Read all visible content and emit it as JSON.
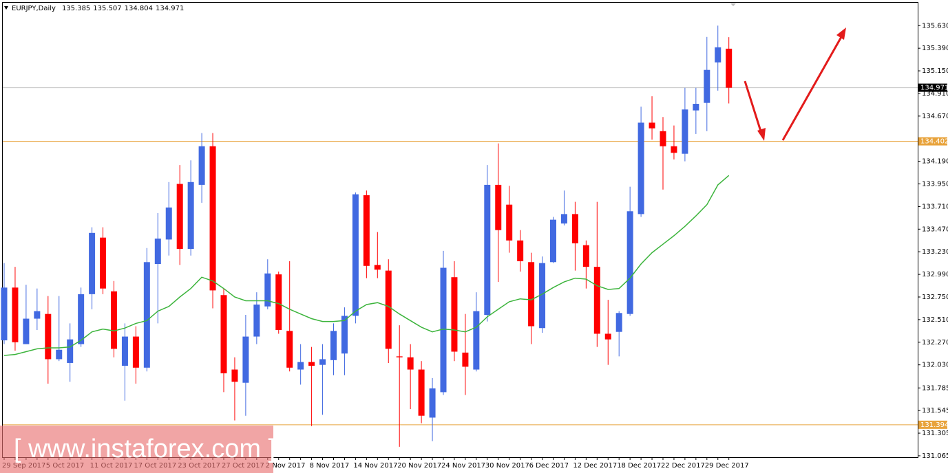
{
  "chart_data": {
    "type": "candlestick",
    "title": "EURJPY,Daily",
    "categories": [
      "29 Sep 2017",
      null,
      null,
      null,
      "5 Oct 2017",
      null,
      null,
      null,
      "11 Oct 2017",
      null,
      null,
      null,
      "17 Oct 2017",
      null,
      null,
      null,
      "23 Oct 2017",
      null,
      null,
      null,
      "27 Oct 2017",
      null,
      null,
      null,
      "2 Nov 2017",
      null,
      null,
      null,
      "8 Nov 2017",
      null,
      null,
      null,
      "14 Nov 2017",
      null,
      null,
      null,
      "20 Nov 2017",
      null,
      null,
      null,
      "24 Nov 2017",
      null,
      null,
      null,
      "30 Nov 2017",
      null,
      null,
      null,
      "6 Dec 2017",
      null,
      null,
      null,
      "12 Dec 2017",
      null,
      null,
      null,
      "18 Dec 2017",
      null,
      null,
      null,
      "22 Dec 2017",
      null,
      null,
      null,
      "29 Dec 2017",
      null,
      null
    ],
    "open": [
      132.29,
      132.85,
      132.25,
      132.52,
      132.57,
      132.09,
      132.05,
      132.25,
      132.78,
      133.38,
      132.81,
      132.02,
      132.33,
      132.0,
      133.1,
      133.36,
      133.95,
      133.26,
      133.94,
      134.35,
      132.77,
      131.98,
      131.84,
      132.33,
      132.65,
      132.99,
      132.39,
      131.98,
      132.06,
      132.03,
      132.08,
      132.15,
      132.55,
      133.83,
      133.09,
      133.03,
      132.12,
      132.11,
      131.98,
      131.47,
      131.74,
      132.96,
      132.16,
      131.98,
      132.56,
      133.94,
      133.73,
      133.35,
      133.12,
      132.42,
      133.12,
      133.53,
      133.63,
      133.3,
      133.07,
      132.36,
      132.38,
      132.57,
      133.63,
      134.6,
      134.51,
      134.35,
      134.27,
      134.73,
      134.81,
      135.24,
      135.385
    ],
    "high": [
      133.11,
      133.07,
      132.88,
      132.84,
      132.76,
      132.76,
      132.47,
      132.85,
      133.49,
      133.49,
      132.92,
      132.47,
      132.44,
      133.27,
      133.64,
      133.97,
      134.15,
      134.2,
      134.49,
      134.49,
      132.84,
      132.11,
      132.56,
      132.8,
      133.15,
      133.02,
      133.13,
      132.25,
      132.22,
      132.25,
      132.47,
      132.64,
      133.86,
      133.88,
      133.44,
      133.15,
      132.45,
      132.25,
      132.07,
      131.89,
      133.24,
      133.13,
      132.57,
      132.8,
      134.15,
      134.38,
      133.93,
      133.46,
      133.22,
      133.18,
      133.6,
      133.88,
      133.76,
      133.35,
      133.76,
      132.72,
      132.6,
      133.92,
      134.77,
      134.88,
      134.66,
      134.57,
      134.97,
      134.97,
      135.51,
      135.63,
      135.507
    ],
    "low": [
      132.25,
      132.18,
      132.25,
      132.4,
      131.83,
      132.07,
      131.85,
      132.22,
      132.62,
      132.78,
      132.11,
      131.65,
      131.83,
      131.96,
      132.47,
      133.19,
      133.09,
      133.19,
      133.75,
      132.63,
      131.74,
      131.44,
      131.49,
      132.25,
      132.62,
      132.36,
      131.96,
      131.82,
      131.38,
      131.5,
      131.92,
      131.92,
      132.47,
      132.95,
      132.95,
      132.05,
      131.16,
      131.56,
      131.41,
      131.22,
      131.71,
      132.07,
      131.71,
      131.96,
      132.49,
      132.91,
      133.22,
      133.02,
      132.25,
      132.37,
      133.11,
      133.51,
      133.03,
      132.84,
      132.22,
      132.03,
      132.12,
      132.55,
      133.6,
      134.42,
      133.89,
      134.21,
      134.19,
      134.48,
      134.51,
      134.94,
      134.804
    ],
    "close": [
      132.85,
      132.27,
      132.52,
      132.6,
      132.09,
      132.19,
      132.3,
      132.78,
      133.43,
      132.84,
      132.2,
      132.33,
      132.0,
      133.12,
      133.37,
      133.7,
      133.26,
      133.97,
      134.35,
      132.82,
      131.94,
      131.85,
      132.33,
      132.67,
      133.0,
      132.4,
      132.0,
      132.06,
      132.02,
      132.09,
      132.39,
      132.55,
      133.84,
      133.08,
      133.04,
      132.2,
      132.11,
      131.98,
      131.49,
      131.78,
      133.06,
      132.17,
      132.01,
      132.6,
      133.94,
      133.46,
      133.35,
      133.13,
      132.44,
      133.11,
      133.57,
      133.63,
      133.32,
      133.07,
      132.36,
      132.3,
      132.58,
      133.66,
      134.6,
      134.54,
      134.35,
      134.28,
      134.74,
      134.8,
      135.16,
      135.4,
      134.971
    ],
    "up_color": "#4169e1",
    "down_color": "#ff0000",
    "ma": {
      "color": "#3cb43c",
      "values": [
        132.13,
        132.14,
        132.17,
        132.2,
        132.21,
        132.21,
        132.22,
        132.29,
        132.38,
        132.41,
        132.39,
        132.42,
        132.47,
        132.5,
        132.6,
        132.65,
        132.75,
        132.84,
        132.96,
        132.92,
        132.84,
        132.75,
        132.71,
        132.71,
        132.71,
        132.68,
        132.62,
        132.57,
        132.52,
        132.49,
        132.49,
        132.5,
        132.6,
        132.67,
        132.69,
        132.65,
        132.57,
        132.5,
        132.43,
        132.38,
        132.41,
        132.4,
        132.38,
        132.43,
        132.54,
        132.62,
        132.7,
        132.73,
        132.72,
        132.78,
        132.85,
        132.91,
        132.95,
        132.94,
        132.87,
        132.83,
        132.84,
        132.95,
        133.1,
        133.22,
        133.31,
        133.4,
        133.5,
        133.61,
        133.73,
        133.94,
        134.04
      ]
    },
    "ylim": [
      131.05,
      135.88
    ],
    "yticks": [
      {
        "value": 135.63,
        "label": "135.630"
      },
      {
        "value": 135.39,
        "label": "135.390"
      },
      {
        "value": 135.15,
        "label": "135.150"
      },
      {
        "value": 134.91,
        "label": "134.910"
      },
      {
        "value": 134.67,
        "label": "134.670"
      },
      {
        "value": 134.19,
        "label": "134.190"
      },
      {
        "value": 133.95,
        "label": "133.950"
      },
      {
        "value": 133.71,
        "label": "133.710"
      },
      {
        "value": 133.47,
        "label": "133.470"
      },
      {
        "value": 133.23,
        "label": "133.230"
      },
      {
        "value": 132.99,
        "label": "132.990"
      },
      {
        "value": 132.75,
        "label": "132.750"
      },
      {
        "value": 132.51,
        "label": "132.510"
      },
      {
        "value": 132.27,
        "label": "132.270"
      },
      {
        "value": 132.03,
        "label": "132.030"
      },
      131.785,
      131.545,
      {
        "value": 131.305,
        "label": "131.305"
      },
      {
        "value": 131.065,
        "label": "131.065"
      }
    ],
    "hlines": [
      {
        "value": 134.971,
        "color": "#c0c0c0",
        "label_bg": "#000000"
      },
      {
        "value": 134.402,
        "color": "#e8a33c",
        "label_bg": "#e8a33c"
      },
      {
        "value": 131.394,
        "color": "#e8a33c",
        "label_bg": "#e8a33c"
      }
    ],
    "watermark": "[ www.instaforex.com ]"
  }
}
